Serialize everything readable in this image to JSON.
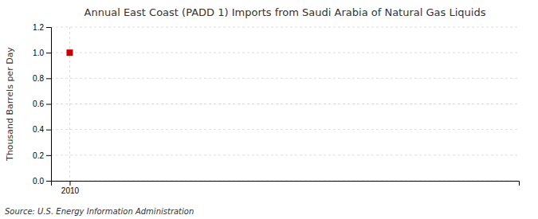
{
  "chart_data": {
    "type": "scatter",
    "title": "Annual East Coast (PADD 1) Imports from Saudi Arabia of Natural Gas Liquids",
    "y_label": "Thousand Barrels per Day",
    "annotations": [
      "Source: U.S. Energy Information Administration"
    ],
    "x": [
      2010
    ],
    "values": [
      1.0
    ],
    "color": "#cc0000",
    "marker": "square",
    "xlim": [
      2009.5,
      2022.0
    ],
    "xticks": [
      2010
    ],
    "ylim": [
      0.0,
      1.2
    ],
    "yticks": [
      {
        "value": 0,
        "label": "0.0"
      },
      0.2,
      0.4,
      0.6,
      0.8,
      {
        "value": 1,
        "label": "1.0"
      },
      1.2
    ],
    "grid": true
  }
}
